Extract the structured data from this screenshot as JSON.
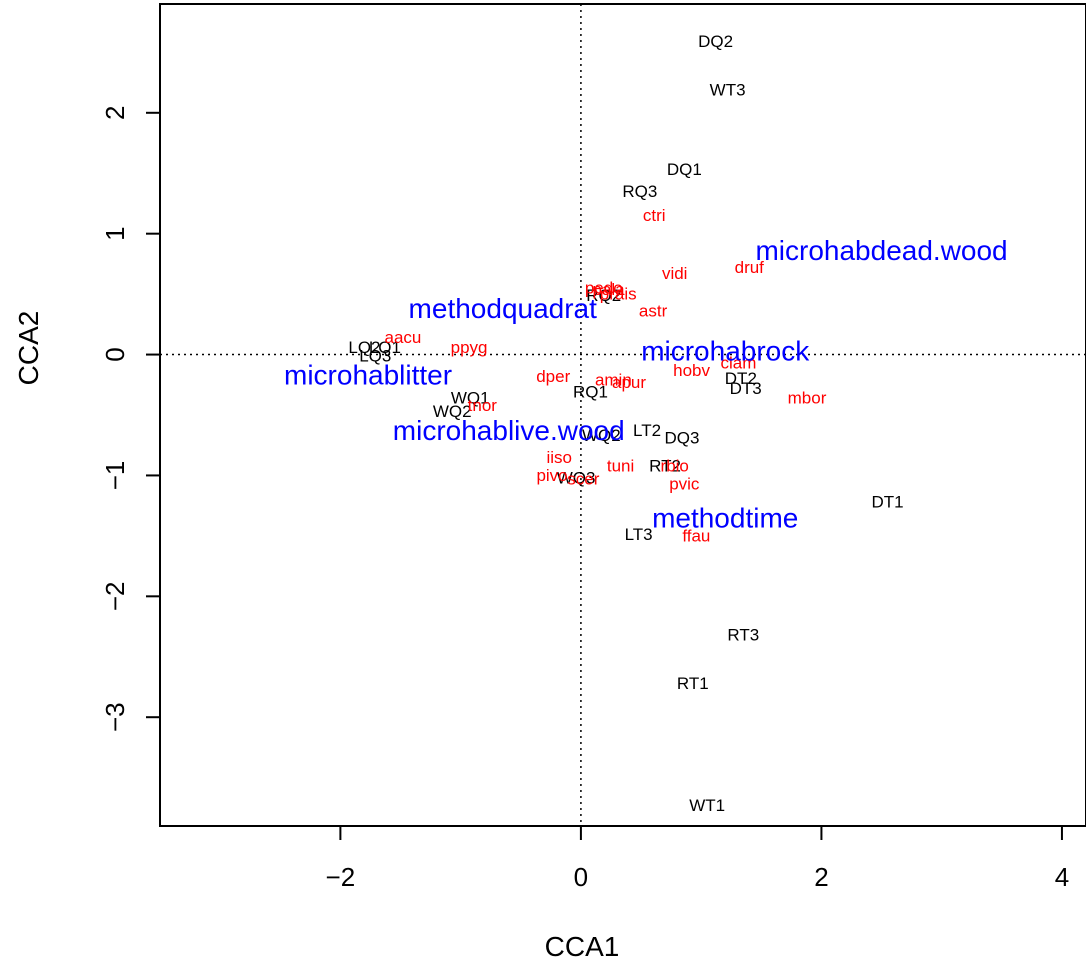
{
  "chart_data": {
    "type": "scatter",
    "title": "",
    "xlabel": "CCA1",
    "ylabel": "CCA2",
    "xlim": [
      -3.5,
      4.2
    ],
    "ylim": [
      -3.9,
      2.9
    ],
    "x_ticks": [
      {
        "value": -2,
        "label": "−2"
      },
      {
        "value": 0,
        "label": "0"
      },
      {
        "value": 2,
        "label": "2"
      },
      {
        "value": 4,
        "label": "4"
      }
    ],
    "y_ticks": [
      {
        "value": -3,
        "label": "−3"
      },
      {
        "value": -2,
        "label": "−2"
      },
      {
        "value": -1,
        "label": "−1"
      },
      {
        "value": 0,
        "label": "0"
      },
      {
        "value": 1,
        "label": "1"
      },
      {
        "value": 2,
        "label": "2"
      }
    ],
    "reference_lines": {
      "x": 0,
      "y": 0,
      "style": "dotted"
    },
    "grid": false,
    "colors": {
      "sites": "#000000",
      "species": "#ff0000",
      "environment": "#0000ff"
    },
    "series": [
      {
        "points": [
          {
            "label": "DQ2",
            "x": 1.12,
            "y": 2.59
          },
          {
            "label": "WT3",
            "x": 1.22,
            "y": 2.19
          },
          {
            "label": "DQ1",
            "x": 0.86,
            "y": 1.53
          },
          {
            "label": "RQ3",
            "x": 0.49,
            "y": 1.35
          },
          {
            "label": "RQ2",
            "x": 0.19,
            "y": 0.49
          },
          {
            "label": "LQ2",
            "x": -1.8,
            "y": 0.06
          },
          {
            "label": "LQ1",
            "x": -1.63,
            "y": 0.06
          },
          {
            "label": "LQ3",
            "x": -1.71,
            "y": -0.01
          },
          {
            "label": "RQ1",
            "x": 0.08,
            "y": -0.31
          },
          {
            "label": "WQ1",
            "x": -0.92,
            "y": -0.36
          },
          {
            "label": "WQ2",
            "x": -1.07,
            "y": -0.47
          },
          {
            "label": "DT2",
            "x": 1.33,
            "y": -0.2
          },
          {
            "label": "DT3",
            "x": 1.37,
            "y": -0.28
          },
          {
            "label": "WQ2",
            "x": 0.17,
            "y": -0.67
          },
          {
            "label": "LT2",
            "x": 0.55,
            "y": -0.63
          },
          {
            "label": "DQ3",
            "x": 0.84,
            "y": -0.69
          },
          {
            "label": "RT2",
            "x": 0.7,
            "y": -0.92
          },
          {
            "label": "WQ3",
            "x": -0.04,
            "y": -1.02
          },
          {
            "label": "DT1",
            "x": 2.55,
            "y": -1.22
          },
          {
            "label": "LT3",
            "x": 0.48,
            "y": -1.49
          },
          {
            "label": "RT3",
            "x": 1.35,
            "y": -2.32
          },
          {
            "label": "RT1",
            "x": 0.93,
            "y": -2.72
          },
          {
            "label": "WT1",
            "x": 1.05,
            "y": -3.73
          }
        ]
      },
      {
        "points": [
          {
            "label": "ctri",
            "x": 0.61,
            "y": 1.15
          },
          {
            "label": "vidi",
            "x": 0.78,
            "y": 0.67
          },
          {
            "label": "druf",
            "x": 1.4,
            "y": 0.72
          },
          {
            "label": "pedo",
            "x": 0.19,
            "y": 0.55
          },
          {
            "label": "pala",
            "x": 0.23,
            "y": 0.54
          },
          {
            "label": "prais",
            "x": 0.31,
            "y": 0.5
          },
          {
            "label": "astr",
            "x": 0.6,
            "y": 0.36
          },
          {
            "label": "aacu",
            "x": -1.48,
            "y": 0.14
          },
          {
            "label": "ppyg",
            "x": -0.93,
            "y": 0.06
          },
          {
            "label": "clam",
            "x": 1.31,
            "y": -0.07
          },
          {
            "label": "hobv",
            "x": 0.92,
            "y": -0.13
          },
          {
            "label": "dper",
            "x": -0.23,
            "y": -0.18
          },
          {
            "label": "amin",
            "x": 0.27,
            "y": -0.21
          },
          {
            "label": "apur",
            "x": 0.4,
            "y": -0.23
          },
          {
            "label": "mbor",
            "x": 1.88,
            "y": -0.36
          },
          {
            "label": "tnor",
            "x": -0.82,
            "y": -0.42
          },
          {
            "label": "iiso",
            "x": -0.18,
            "y": -0.85
          },
          {
            "label": "tuni",
            "x": 0.33,
            "y": -0.92
          },
          {
            "label": "rbio",
            "x": 0.78,
            "y": -0.92
          },
          {
            "label": "pivo",
            "x": -0.24,
            "y": -1.0
          },
          {
            "label": "scer",
            "x": 0.02,
            "y": -1.03
          },
          {
            "label": "pvic",
            "x": 0.86,
            "y": -1.07
          },
          {
            "label": "ffau",
            "x": 0.96,
            "y": -1.5
          }
        ]
      },
      {
        "points": [
          {
            "label": "microhabdead.wood",
            "x": 2.5,
            "y": 0.86
          },
          {
            "label": "methodquadrat",
            "x": -0.65,
            "y": 0.38
          },
          {
            "label": "microhabrock",
            "x": 1.2,
            "y": 0.03
          },
          {
            "label": "microhablitter",
            "x": -1.77,
            "y": -0.17
          },
          {
            "label": "microhablive.wood",
            "x": -0.6,
            "y": -0.63
          },
          {
            "label": "methodtime",
            "x": 1.2,
            "y": -1.35
          }
        ]
      }
    ]
  }
}
